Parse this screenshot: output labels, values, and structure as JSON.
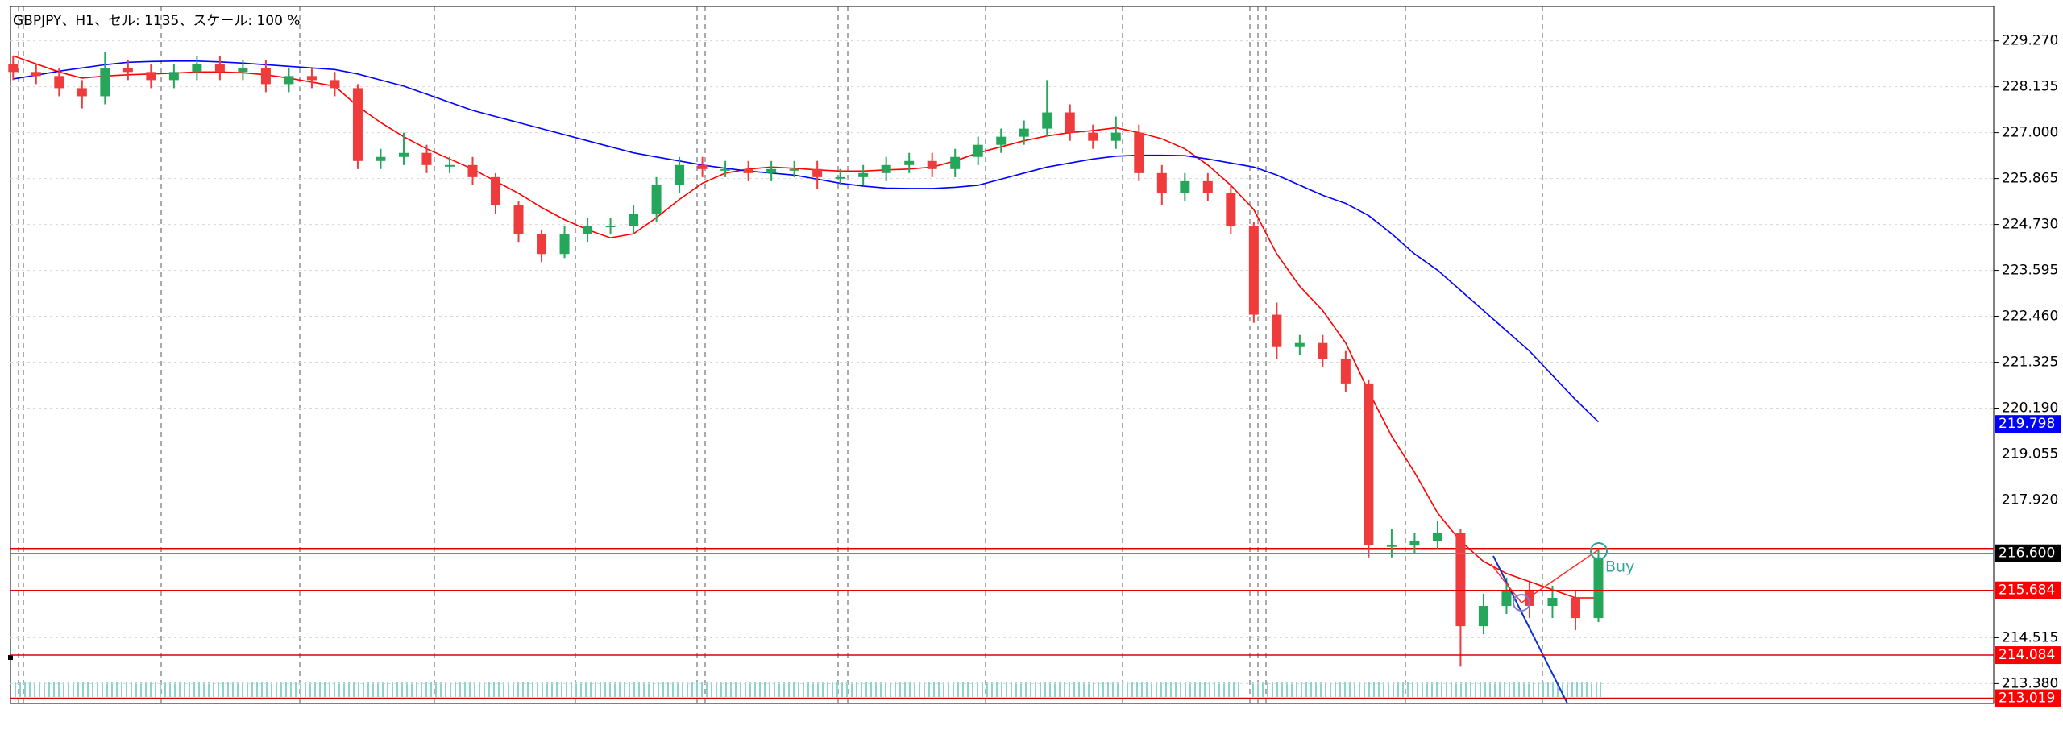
{
  "chart_data": {
    "type": "candlestick",
    "title": "GBPJPY、H1、セル: 1135、スケール: 100 %",
    "up_color": "#26a65b",
    "down_color": "#ef3b3b",
    "open": [
      228.7,
      228.5,
      228.4,
      228.1,
      227.9,
      228.6,
      228.5,
      228.3,
      228.5,
      228.7,
      228.5,
      228.6,
      228.2,
      228.4,
      228.3,
      228.1,
      226.3,
      226.4,
      226.5,
      226.2,
      226.2,
      225.9,
      225.2,
      224.5,
      224.0,
      224.5,
      224.7,
      224.7,
      225.0,
      225.7,
      226.2,
      226.1,
      226.1,
      226.0,
      226.1,
      226.1,
      225.9,
      225.9,
      226.0,
      226.2,
      226.3,
      226.1,
      226.4,
      226.7,
      226.9,
      227.1,
      227.5,
      227.0,
      226.8,
      227.0,
      226.0,
      225.5,
      225.8,
      225.5,
      224.7,
      222.5,
      221.7,
      221.8,
      221.4,
      220.8,
      216.8,
      216.8,
      216.9,
      217.1,
      214.8,
      215.3,
      215.7,
      215.3,
      215.5,
      215.0
    ],
    "high": [
      228.9,
      228.7,
      228.6,
      228.3,
      229.0,
      228.8,
      228.7,
      228.7,
      228.9,
      228.9,
      228.8,
      228.8,
      228.6,
      228.6,
      228.5,
      228.2,
      226.6,
      227.0,
      226.7,
      226.4,
      226.4,
      226.0,
      225.3,
      224.6,
      224.7,
      224.9,
      224.9,
      225.2,
      225.9,
      226.4,
      226.4,
      226.3,
      226.3,
      226.3,
      226.3,
      226.3,
      226.1,
      226.2,
      226.4,
      226.5,
      226.5,
      226.6,
      226.9,
      227.1,
      227.3,
      228.3,
      227.7,
      227.2,
      227.4,
      227.2,
      226.2,
      226.0,
      226.0,
      225.7,
      224.8,
      222.8,
      222.0,
      222.0,
      221.6,
      220.9,
      217.2,
      217.1,
      217.4,
      217.2,
      215.6,
      216.0,
      215.9,
      215.8,
      215.7,
      216.7
    ],
    "low": [
      228.3,
      228.2,
      227.9,
      227.6,
      227.7,
      228.3,
      228.1,
      228.1,
      228.3,
      228.3,
      228.3,
      228.0,
      228.0,
      228.1,
      227.9,
      226.1,
      226.1,
      226.2,
      226.0,
      226.0,
      225.7,
      225.0,
      224.3,
      223.8,
      223.9,
      224.3,
      224.5,
      224.5,
      224.8,
      225.5,
      225.9,
      225.9,
      225.8,
      225.8,
      225.9,
      225.6,
      225.7,
      225.7,
      225.8,
      226.0,
      225.9,
      225.9,
      226.2,
      226.5,
      226.7,
      226.9,
      226.8,
      226.6,
      226.6,
      225.8,
      225.2,
      225.3,
      225.3,
      224.5,
      222.3,
      221.4,
      221.5,
      221.2,
      220.6,
      216.5,
      216.5,
      216.6,
      216.7,
      213.8,
      214.6,
      215.1,
      215.0,
      215.0,
      214.7,
      214.9
    ],
    "close": [
      228.5,
      228.4,
      228.1,
      227.9,
      228.6,
      228.5,
      228.3,
      228.5,
      228.7,
      228.5,
      228.6,
      228.2,
      228.4,
      228.3,
      228.1,
      226.3,
      226.4,
      226.5,
      226.2,
      226.2,
      225.9,
      225.2,
      224.5,
      224.0,
      224.5,
      224.7,
      224.7,
      225.0,
      225.7,
      226.2,
      226.1,
      226.1,
      226.0,
      226.1,
      226.1,
      225.9,
      225.9,
      226.0,
      226.2,
      226.3,
      226.1,
      226.4,
      226.7,
      226.9,
      227.1,
      227.5,
      227.0,
      226.8,
      227.0,
      226.0,
      225.5,
      225.8,
      225.5,
      224.7,
      222.5,
      221.7,
      221.8,
      221.4,
      220.8,
      216.8,
      216.8,
      216.9,
      217.1,
      214.8,
      215.3,
      215.7,
      215.3,
      215.5,
      215.0,
      216.5
    ],
    "series": [
      {
        "color": "#ff0000",
        "values": [
          228.9,
          228.7,
          228.5,
          228.35,
          228.4,
          228.43,
          228.45,
          228.47,
          228.5,
          228.5,
          228.48,
          228.43,
          228.35,
          228.25,
          228.15,
          227.65,
          227.25,
          226.9,
          226.6,
          226.35,
          226.1,
          225.8,
          225.5,
          225.15,
          224.85,
          224.6,
          224.4,
          224.5,
          224.9,
          225.35,
          225.75,
          226.0,
          226.1,
          226.15,
          226.12,
          226.08,
          226.05,
          226.05,
          226.08,
          226.1,
          226.15,
          226.3,
          226.5,
          226.65,
          226.8,
          226.92,
          227.0,
          227.05,
          227.12,
          227.0,
          226.85,
          226.6,
          226.2,
          225.7,
          225.1,
          224.0,
          223.2,
          222.6,
          221.8,
          220.6,
          219.5,
          218.6,
          217.6,
          216.9,
          216.4,
          216.1,
          215.9,
          215.7,
          215.5,
          215.5
        ]
      },
      {
        "color": "#0000ff",
        "values": [
          228.33,
          228.42,
          228.52,
          228.6,
          228.68,
          228.74,
          228.76,
          228.77,
          228.77,
          228.75,
          228.72,
          228.68,
          228.64,
          228.6,
          228.56,
          228.45,
          228.3,
          228.15,
          227.95,
          227.75,
          227.55,
          227.4,
          227.25,
          227.1,
          226.95,
          226.8,
          226.65,
          226.5,
          226.4,
          226.3,
          226.2,
          226.12,
          226.05,
          226.0,
          225.95,
          225.85,
          225.75,
          225.68,
          225.63,
          225.62,
          225.62,
          225.65,
          225.7,
          225.85,
          226.0,
          226.15,
          226.25,
          226.35,
          226.42,
          226.44,
          226.44,
          226.43,
          226.35,
          226.25,
          226.15,
          225.95,
          225.7,
          225.45,
          225.25,
          224.95,
          224.5,
          224.0,
          223.6,
          223.1,
          222.6,
          222.1,
          221.6,
          221.0,
          220.4,
          219.85
        ]
      }
    ],
    "ylim": [
      212.89,
      230.12
    ],
    "yticks": [
      {
        "value": 229.27,
        "label": "229.270"
      },
      {
        "value": 228.135,
        "label": "228.135"
      },
      {
        "value": 227.0,
        "label": "227.000"
      },
      {
        "value": 225.865,
        "label": "225.865"
      },
      {
        "value": 224.73,
        "label": "224.730"
      },
      {
        "value": 223.595,
        "label": "223.595"
      },
      {
        "value": 222.46,
        "label": "222.460"
      },
      {
        "value": 221.325,
        "label": "221.325"
      },
      {
        "value": 220.19,
        "label": "220.190"
      },
      {
        "value": 219.055,
        "label": "219.055"
      },
      {
        "value": 217.92,
        "label": "217.920"
      },
      {
        "value": 214.515,
        "label": "214.515"
      },
      {
        "value": 213.38,
        "label": "213.380"
      }
    ],
    "grid": true,
    "hlines": [
      {
        "value": 216.72,
        "color": "#e00000"
      }
    ],
    "price_labels": [
      {
        "value": 219.798,
        "label": "219.798",
        "color": "#0000ff",
        "line": false
      },
      {
        "value": 216.6,
        "label": "216.600",
        "color": "#000000",
        "line": true,
        "line_color": "#6a7fd0"
      },
      {
        "value": 215.684,
        "label": "215.684",
        "color": "#ff0000",
        "line": true,
        "line_color": "#e00000"
      },
      {
        "value": 214.084,
        "label": "214.084",
        "color": "#ff0000",
        "line": true,
        "line_color": "#e00000"
      },
      {
        "value": 213.019,
        "label": "213.019",
        "color": "#ff0000",
        "line": true,
        "line_color": "#e00000"
      }
    ],
    "annotation": "Buy"
  }
}
